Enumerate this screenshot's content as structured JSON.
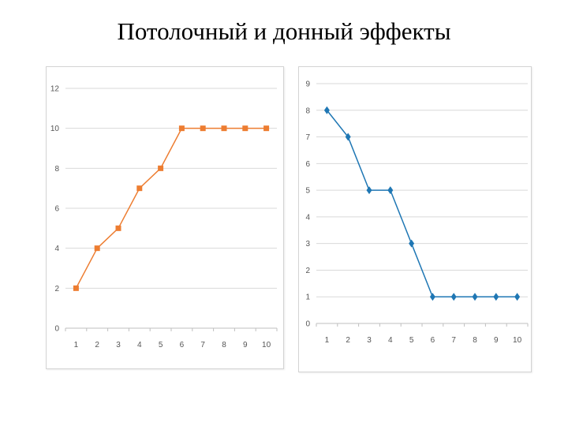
{
  "page": {
    "title": "Потолочный и донный эффекты"
  },
  "chart_data": [
    {
      "type": "line",
      "title": "",
      "xlabel": "",
      "ylabel": "",
      "categories": [
        "1",
        "2",
        "3",
        "4",
        "5",
        "6",
        "7",
        "8",
        "9",
        "10"
      ],
      "series": [
        {
          "values": [
            2,
            4,
            5,
            7,
            8,
            10,
            10,
            10,
            10,
            10
          ],
          "color": "#ED7D31",
          "marker": "square"
        }
      ],
      "ylim": [
        0,
        12
      ],
      "yticks": [
        "0",
        "2",
        "4",
        "6",
        "8",
        "10",
        "12"
      ],
      "grid": true,
      "legend": "none"
    },
    {
      "type": "line",
      "title": "",
      "xlabel": "",
      "ylabel": "",
      "categories": [
        "1",
        "2",
        "3",
        "4",
        "5",
        "6",
        "7",
        "8",
        "9",
        "10"
      ],
      "series": [
        {
          "values": [
            8,
            7,
            5,
            5,
            3,
            1,
            1,
            1,
            1,
            1
          ],
          "color": "#1F77B4",
          "marker": "diamond"
        }
      ],
      "ylim": [
        0,
        9
      ],
      "yticks": [
        "0",
        "1",
        "2",
        "3",
        "4",
        "5",
        "6",
        "7",
        "8",
        "9"
      ],
      "grid": true,
      "legend": "none"
    }
  ]
}
